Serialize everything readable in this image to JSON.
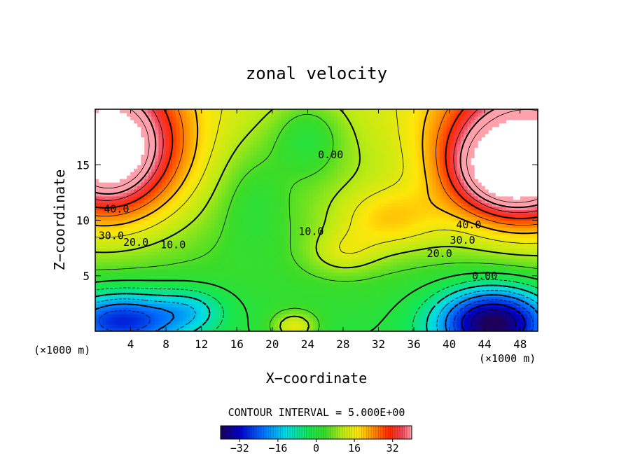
{
  "chart_data": {
    "type": "heatmap",
    "title": "zonal velocity",
    "xlabel": "X−coordinate",
    "ylabel": "Z−coordinate",
    "x_unit_left": "(×1000 m)",
    "x_unit_right": "(×1000 m)",
    "xlim": [
      0,
      50
    ],
    "ylim": [
      0,
      20
    ],
    "xticks": [
      4,
      8,
      12,
      16,
      20,
      24,
      28,
      32,
      36,
      40,
      44,
      48
    ],
    "yticks": [
      5,
      10,
      15
    ],
    "contour_interval_text": "CONTOUR INTERVAL = 5.000E+00",
    "contour_labels": [
      {
        "text": "40.0",
        "x": 2.4,
        "y": 11.0
      },
      {
        "text": "30.0",
        "x": 1.8,
        "y": 8.6
      },
      {
        "text": "20.0",
        "x": 4.6,
        "y": 8.0
      },
      {
        "text": "10.0",
        "x": 8.8,
        "y": 7.8
      },
      {
        "text": "0.00",
        "x": 26.6,
        "y": 15.9
      },
      {
        "text": "10.0",
        "x": 24.4,
        "y": 9.0
      },
      {
        "text": "40.0",
        "x": 42.2,
        "y": 9.6
      },
      {
        "text": "30.0",
        "x": 41.5,
        "y": 8.2
      },
      {
        "text": "20.0",
        "x": 38.9,
        "y": 7.0
      },
      {
        "text": "0.00",
        "x": 44.0,
        "y": 5.0
      }
    ],
    "colorbar": {
      "vmin": -40,
      "vmax": 40,
      "ticks": [
        -32,
        -16,
        0,
        16,
        32
      ],
      "tick_labels": [
        "−32",
        "−16",
        "0",
        "16",
        "32"
      ]
    },
    "grid": false,
    "legend": "none"
  }
}
